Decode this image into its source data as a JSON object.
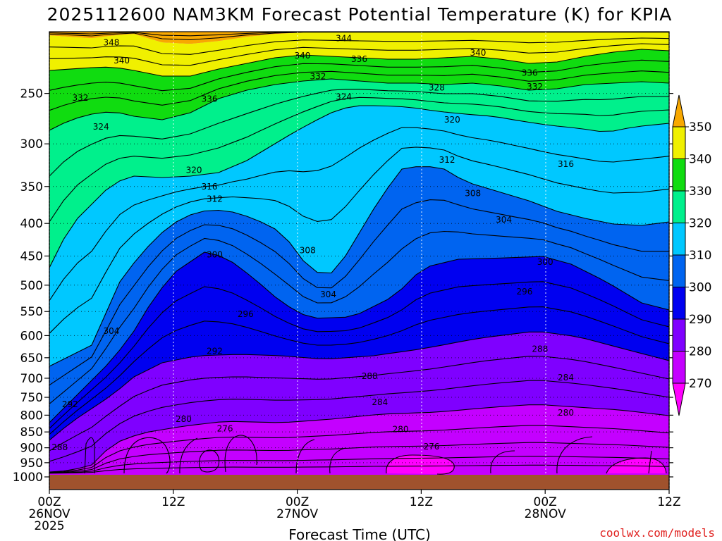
{
  "title": "2025112600 NAM3KM Forecast Potential Temperature (K) for KPIA",
  "credit": "coolwx.com/models",
  "colors": {
    "ground": "#a0522d",
    "credit": "#e0211f",
    "bands": [
      "#ff00ff",
      "#c400ff",
      "#7f00ff",
      "#3300ff",
      "#0000f0",
      "#0064f0",
      "#0094ff",
      "#00c8ff",
      "#00f08c",
      "#10dc10",
      "#8cff00",
      "#f0f000",
      "#f8a800"
    ]
  },
  "chart_data": {
    "type": "time-height contour",
    "title": "2025112600 NAM3KM Forecast Potential Temperature (K) for KPIA",
    "xlabel": "Forecast Time (UTC)",
    "ylabel": "",
    "x_hours_range": [
      0,
      60
    ],
    "p_range_hPa": [
      1000,
      200
    ],
    "y_ticks": [
      "250",
      "300",
      "350",
      "400",
      "450",
      "500",
      "550",
      "600",
      "650",
      "700",
      "750",
      "800",
      "850",
      "900",
      "950",
      "1000"
    ],
    "y_tick_values": [
      250,
      300,
      350,
      400,
      450,
      500,
      550,
      600,
      650,
      700,
      750,
      800,
      850,
      900,
      950,
      1000
    ],
    "x_ticks": [
      {
        "hour": 0,
        "lines": [
          "00Z",
          "26NOV",
          "2025"
        ]
      },
      {
        "hour": 12,
        "lines": [
          "12Z"
        ]
      },
      {
        "hour": 24,
        "lines": [
          "00Z",
          "27NOV"
        ]
      },
      {
        "hour": 36,
        "lines": [
          "12Z"
        ]
      },
      {
        "hour": 48,
        "lines": [
          "00Z",
          "28NOV"
        ]
      },
      {
        "hour": 60,
        "lines": [
          "12Z"
        ]
      }
    ],
    "colorbar_levels": [
      "350",
      "340",
      "330",
      "320",
      "310",
      "300",
      "290",
      "280",
      "270"
    ],
    "contour_interval_K": 4,
    "contour_labels": [
      {
        "text": "348",
        "hour": 6.0,
        "p": 208
      },
      {
        "text": "340",
        "hour": 7.0,
        "p": 222
      },
      {
        "text": "332",
        "hour": 3.0,
        "p": 254
      },
      {
        "text": "324",
        "hour": 5.0,
        "p": 282
      },
      {
        "text": "336",
        "hour": 15.5,
        "p": 255
      },
      {
        "text": "344",
        "hour": 28.5,
        "p": 205
      },
      {
        "text": "340",
        "hour": 24.5,
        "p": 218
      },
      {
        "text": "336",
        "hour": 30.0,
        "p": 221
      },
      {
        "text": "332",
        "hour": 26.0,
        "p": 235
      },
      {
        "text": "324",
        "hour": 28.5,
        "p": 253
      },
      {
        "text": "328",
        "hour": 37.5,
        "p": 245
      },
      {
        "text": "320",
        "hour": 39.0,
        "p": 275
      },
      {
        "text": "340",
        "hour": 41.5,
        "p": 216
      },
      {
        "text": "336",
        "hour": 46.5,
        "p": 232
      },
      {
        "text": "332",
        "hour": 47.0,
        "p": 244
      },
      {
        "text": "312",
        "hour": 38.5,
        "p": 318
      },
      {
        "text": "316",
        "hour": 50.0,
        "p": 323
      },
      {
        "text": "320",
        "hour": 14.0,
        "p": 330
      },
      {
        "text": "316",
        "hour": 15.5,
        "p": 350
      },
      {
        "text": "312",
        "hour": 16.0,
        "p": 366
      },
      {
        "text": "308",
        "hour": 41.0,
        "p": 359
      },
      {
        "text": "304",
        "hour": 44.0,
        "p": 395
      },
      {
        "text": "308",
        "hour": 25.0,
        "p": 441
      },
      {
        "text": "300",
        "hour": 16.0,
        "p": 448
      },
      {
        "text": "300",
        "hour": 48.0,
        "p": 460
      },
      {
        "text": "304",
        "hour": 27.0,
        "p": 517
      },
      {
        "text": "296",
        "hour": 46.0,
        "p": 512
      },
      {
        "text": "296",
        "hour": 19.0,
        "p": 555
      },
      {
        "text": "304",
        "hour": 6.0,
        "p": 590
      },
      {
        "text": "292",
        "hour": 16.0,
        "p": 635
      },
      {
        "text": "288",
        "hour": 47.5,
        "p": 630
      },
      {
        "text": "288",
        "hour": 31.0,
        "p": 695
      },
      {
        "text": "284",
        "hour": 50.0,
        "p": 698
      },
      {
        "text": "284",
        "hour": 32.0,
        "p": 763
      },
      {
        "text": "292",
        "hour": 2.0,
        "p": 769
      },
      {
        "text": "280",
        "hour": 13.0,
        "p": 812
      },
      {
        "text": "276",
        "hour": 17.0,
        "p": 840
      },
      {
        "text": "280",
        "hour": 34.0,
        "p": 842
      },
      {
        "text": "280",
        "hour": 50.0,
        "p": 793
      },
      {
        "text": "276",
        "hour": 37.0,
        "p": 896
      },
      {
        "text": "288",
        "hour": 1.0,
        "p": 898
      }
    ]
  }
}
